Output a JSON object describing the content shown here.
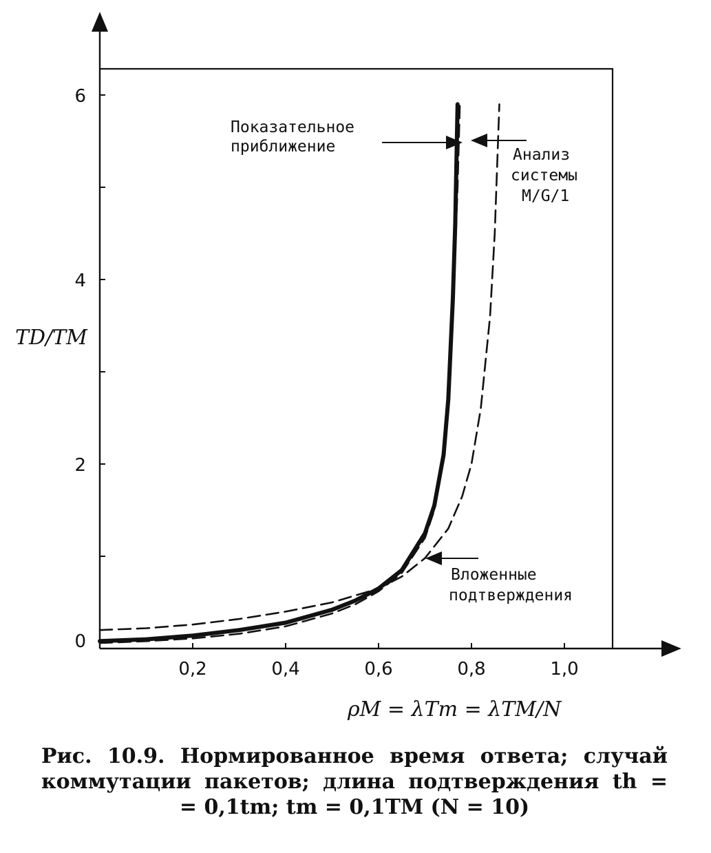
{
  "chart_data": {
    "type": "line",
    "xlabel": "ρM = λTm = λTM/N",
    "ylabel": "TD/TM",
    "xlim": [
      0,
      1.1
    ],
    "ylim": [
      0,
      6.3
    ],
    "x_ticks": [
      0.2,
      0.4,
      0.6,
      0.8,
      1.0
    ],
    "x_tick_labels": [
      "0,2",
      "0,4",
      "0,6",
      "0,8",
      "1,0"
    ],
    "y_ticks": [
      0,
      1,
      2,
      3,
      4,
      5,
      6
    ],
    "y_tick_labels": [
      "0",
      "",
      "2",
      "",
      "4",
      "",
      "6"
    ],
    "grid": false,
    "series": [
      {
        "name": "Показательное приближение",
        "style": "solid-thick",
        "x": [
          0.0,
          0.1,
          0.2,
          0.3,
          0.4,
          0.5,
          0.55,
          0.6,
          0.65,
          0.7,
          0.72,
          0.74,
          0.75,
          0.76,
          0.765,
          0.77
        ],
        "y": [
          0.08,
          0.1,
          0.14,
          0.2,
          0.28,
          0.42,
          0.52,
          0.65,
          0.85,
          1.25,
          1.55,
          2.1,
          2.7,
          3.8,
          4.6,
          5.9
        ]
      },
      {
        "name": "Вложенные подтверждения",
        "style": "dashed",
        "x": [
          0.0,
          0.1,
          0.2,
          0.3,
          0.4,
          0.5,
          0.55,
          0.6,
          0.65,
          0.7,
          0.72,
          0.74,
          0.75,
          0.76,
          0.77,
          0.775
        ],
        "y": [
          0.06,
          0.08,
          0.11,
          0.16,
          0.24,
          0.38,
          0.48,
          0.62,
          0.82,
          1.2,
          1.5,
          2.05,
          2.6,
          3.6,
          5.0,
          5.9
        ]
      },
      {
        "name": "Анализ системы M/G/1",
        "style": "dashed",
        "x": [
          0.0,
          0.1,
          0.2,
          0.3,
          0.4,
          0.5,
          0.6,
          0.65,
          0.7,
          0.75,
          0.78,
          0.8,
          0.82,
          0.84,
          0.85,
          0.86
        ],
        "y": [
          0.2,
          0.22,
          0.26,
          0.32,
          0.4,
          0.5,
          0.65,
          0.78,
          0.98,
          1.3,
          1.65,
          2.0,
          2.6,
          3.6,
          4.5,
          5.9
        ]
      }
    ],
    "annotations": [
      {
        "lines": [
          "Показательное",
          "приближение"
        ]
      },
      {
        "lines": [
          "Анализ",
          "системы",
          "M/G/1"
        ]
      },
      {
        "lines": [
          "Вложенные",
          "подтверждения"
        ]
      }
    ]
  },
  "caption": {
    "line1": "Рис. 10.9. Нормированное время ответа; случай",
    "line2": "коммутации пакетов; длина подтверждения th =",
    "line3": "= 0,1tm; tm = 0,1TM (N = 10)"
  }
}
